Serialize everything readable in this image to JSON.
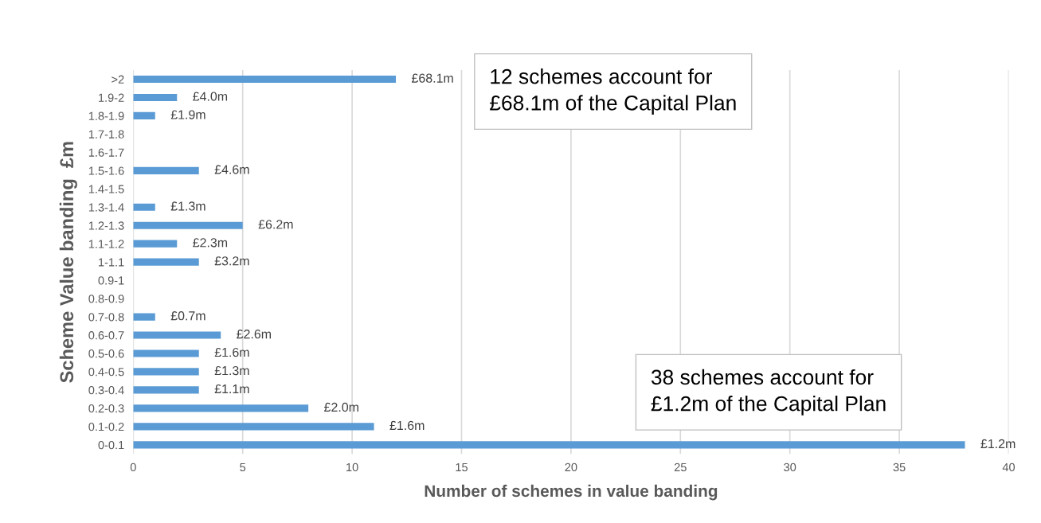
{
  "chart_data": {
    "type": "bar",
    "orientation": "horizontal",
    "xlabel": "Number of schemes in value banding",
    "ylabel": "Scheme Value banding  £m",
    "categories": [
      ">2",
      "1.9-2",
      "1.8-1.9",
      "1.7-1.8",
      "1.6-1.7",
      "1.5-1.6",
      "1.4-1.5",
      "1.3-1.4",
      "1.2-1.3",
      "1.1-1.2",
      "1-1.1",
      "0.9-1",
      "0.8-0.9",
      "0.7-0.8",
      "0.6-0.7",
      "0.5-0.6",
      "0.4-0.5",
      "0.3-0.4",
      "0.2-0.3",
      "0.1-0.2",
      "0-0.1"
    ],
    "values": [
      12,
      2,
      1,
      0,
      0,
      3,
      0,
      1,
      5,
      2,
      3,
      0,
      0,
      1,
      4,
      3,
      3,
      3,
      8,
      11,
      38
    ],
    "color": "#5b9bd5",
    "xlim": [
      0,
      40
    ],
    "xticks": [
      0,
      5,
      10,
      15,
      20,
      25,
      30,
      35,
      40
    ],
    "grid": "x",
    "legend": false,
    "annotations": [
      "12 schemes account for\n£68.1m of the Capital Plan",
      "38 schemes account for\n£1.2m of the Capital Plan",
      {
        "text": "£68.1m",
        "x": 12,
        "y": ">2"
      },
      {
        "text": "£4.0m",
        "x": 2,
        "y": "1.9-2"
      },
      {
        "text": "£1.9m",
        "x": 1,
        "y": "1.8-1.9"
      },
      {
        "text": "£4.6m",
        "x": 3,
        "y": "1.5-1.6"
      },
      {
        "text": "£1.3m",
        "x": 1,
        "y": "1.3-1.4"
      },
      {
        "text": "£6.2m",
        "x": 5,
        "y": "1.2-1.3"
      },
      {
        "text": "£2.3m",
        "x": 2,
        "y": "1.1-1.2"
      },
      {
        "text": "£3.2m",
        "x": 3,
        "y": "1-1.1"
      },
      {
        "text": "£0.7m",
        "x": 1,
        "y": "0.7-0.8"
      },
      {
        "text": "£2.6m",
        "x": 4,
        "y": "0.6-0.7"
      },
      {
        "text": "£1.6m",
        "x": 3,
        "y": "0.5-0.6"
      },
      {
        "text": "£1.3m",
        "x": 3,
        "y": "0.4-0.5"
      },
      {
        "text": "£1.1m",
        "x": 3,
        "y": "0.3-0.4"
      },
      {
        "text": "£2.0m",
        "x": 8,
        "y": "0.2-0.3"
      },
      {
        "text": "£1.6m",
        "x": 11,
        "y": "0.1-0.2"
      },
      {
        "text": "£1.2m",
        "x": 38,
        "y": "0-0.1"
      }
    ]
  }
}
